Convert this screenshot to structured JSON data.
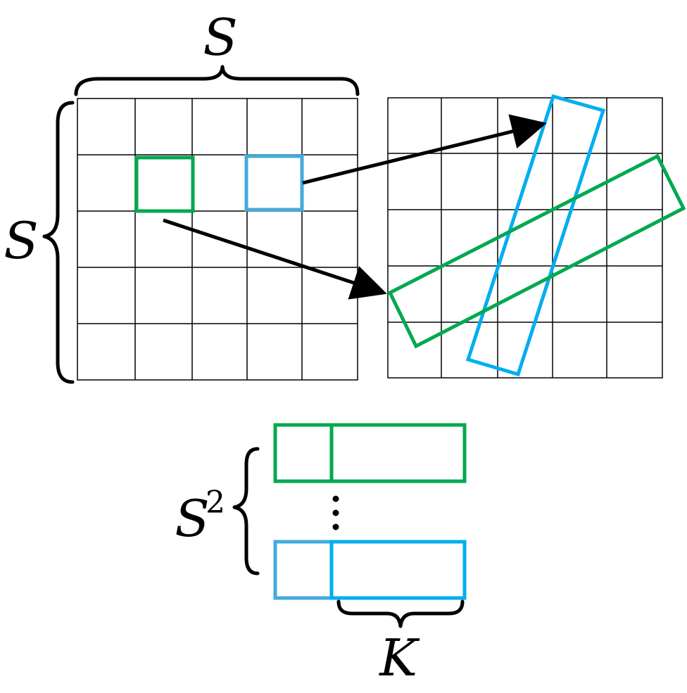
{
  "labels": {
    "grid_top_label": "S",
    "grid_side_label": "S",
    "stack_base_label": "S",
    "stack_exponent": "2",
    "stack_width_label": "K"
  },
  "colors": {
    "green": "#00a94f",
    "blue_cell": "#45aadc",
    "blue": "#00aeef",
    "grid_line": "#000000",
    "arrow": "#000000"
  },
  "grid": {
    "rows": 5,
    "cols": 5
  }
}
